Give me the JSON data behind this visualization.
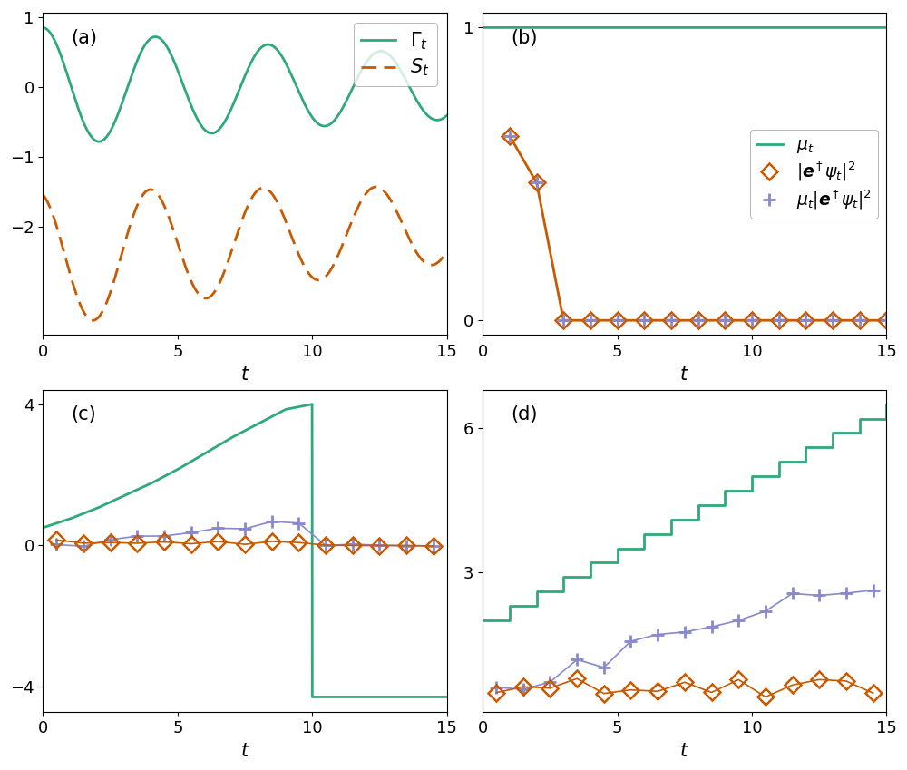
{
  "teal": "#2EAA7A",
  "orange": "#C85A00",
  "purple": "#8888CC",
  "lw": 2.0,
  "ms": 9,
  "fs_tick": 13,
  "fs_label": 15,
  "fs_panel": 15,
  "panel_a": {
    "label": "(a)",
    "gamma_label": "$\\Gamma_t$",
    "S_label": "$S_t$",
    "xlim": [
      0,
      15
    ],
    "xticks": [
      0,
      5,
      10,
      15
    ],
    "yticks": [
      -2,
      -1,
      0,
      1
    ]
  },
  "panel_b": {
    "label": "(b)",
    "mu_label": "$\\mu_t$",
    "mu_ep_label": "$\\mu_t|\\boldsymbol{e}^\\dagger\\psi_t|^2$",
    "ep_label": "$|\\boldsymbol{e}^\\dagger\\psi_t|^2$",
    "xlim": [
      0,
      15
    ],
    "xticks": [
      0,
      5,
      10,
      15
    ],
    "yticks": [
      0,
      1
    ]
  },
  "panel_c": {
    "label": "(c)",
    "xlim": [
      0,
      15
    ],
    "xticks": [
      0,
      5,
      10,
      15
    ],
    "yticks": [
      -4,
      0,
      4
    ]
  },
  "panel_d": {
    "label": "(d)",
    "xlim": [
      0,
      15
    ],
    "xticks": [
      0,
      5,
      10,
      15
    ],
    "yticks": [
      3,
      6
    ]
  }
}
